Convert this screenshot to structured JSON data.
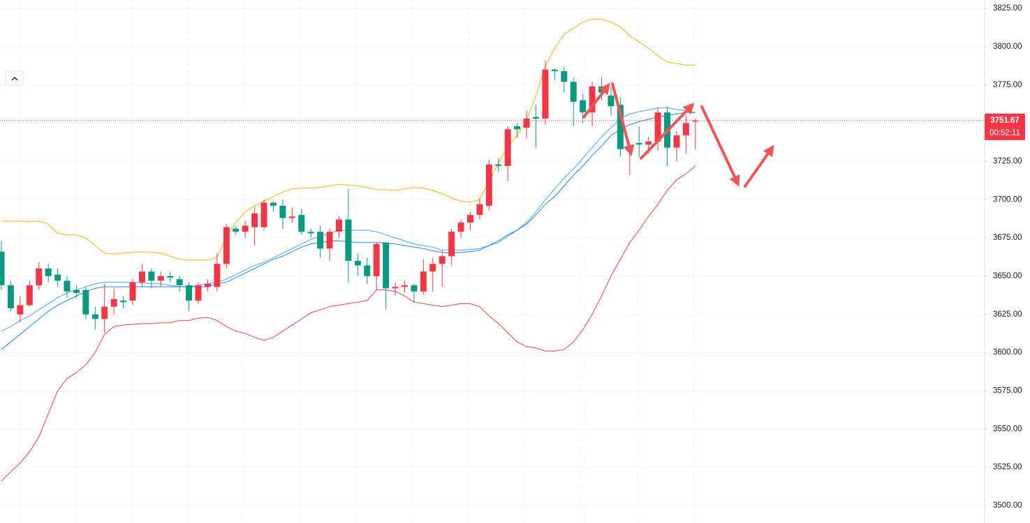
{
  "chart_data": {
    "type": "candlestick",
    "up_color": "#f23645",
    "down_color": "#089981",
    "open": [
      3666,
      3644,
      3625,
      3631,
      3644,
      3655,
      3651,
      3647,
      3641,
      3641,
      3625,
      3622,
      3630,
      3634,
      3634,
      3646,
      3653,
      3647,
      3650,
      3648,
      3644,
      3634,
      3643,
      3643,
      3658,
      3681,
      3679,
      3682,
      3682,
      3698,
      3696,
      3688,
      3690,
      3679,
      3679,
      3668,
      3679,
      3687,
      3660,
      3657,
      3650,
      3672,
      3642,
      3643,
      3644,
      3640,
      3653,
      3658,
      3663,
      3679,
      3685,
      3690,
      3696,
      3723,
      3722,
      3748,
      3747,
      3754,
      3753,
      3785,
      3784,
      3777,
      3765,
      3757,
      3774,
      3768,
      3762,
      3733,
      3737,
      3736,
      3738,
      3757,
      3734,
      3742,
      3751
    ],
    "high": [
      3673,
      3647,
      3637,
      3647,
      3659,
      3658,
      3655,
      3650,
      3644,
      3643,
      3630,
      3645,
      3642,
      3637,
      3648,
      3658,
      3655,
      3653,
      3653,
      3650,
      3646,
      3646,
      3648,
      3665,
      3684,
      3683,
      3686,
      3695,
      3700,
      3699,
      3700,
      3695,
      3694,
      3681,
      3683,
      3681,
      3689,
      3707,
      3665,
      3662,
      3672,
      3672,
      3646,
      3647,
      3645,
      3661,
      3662,
      3667,
      3681,
      3687,
      3692,
      3701,
      3726,
      3727,
      3748,
      3750,
      3758,
      3762,
      3791,
      3786,
      3787,
      3780,
      3769,
      3777,
      3780,
      3774,
      3767,
      3737,
      3748,
      3741,
      3760,
      3761,
      3745,
      3755,
      3753
    ],
    "low": [
      3641,
      3627,
      3620,
      3630,
      3641,
      3646,
      3643,
      3636,
      3636,
      3622,
      3615,
      3613,
      3625,
      3629,
      3631,
      3643,
      3642,
      3643,
      3646,
      3640,
      3627,
      3632,
      3640,
      3640,
      3655,
      3677,
      3675,
      3670,
      3680,
      3692,
      3681,
      3685,
      3677,
      3675,
      3662,
      3660,
      3675,
      3646,
      3650,
      3645,
      3641,
      3628,
      3637,
      3639,
      3633,
      3638,
      3640,
      3643,
      3657,
      3675,
      3680,
      3687,
      3693,
      3718,
      3712,
      3740,
      3740,
      3734,
      3749,
      3778,
      3770,
      3748,
      3750,
      3748,
      3765,
      3755,
      3728,
      3716,
      3728,
      3730,
      3732,
      3722,
      3725,
      3730,
      3733
    ],
    "close": [
      3644,
      3629,
      3631,
      3644,
      3655,
      3650,
      3647,
      3640,
      3639,
      3625,
      3622,
      3630,
      3635,
      3633,
      3646,
      3653,
      3647,
      3650,
      3649,
      3644,
      3634,
      3644,
      3645,
      3658,
      3682,
      3679,
      3683,
      3691,
      3698,
      3696,
      3688,
      3689,
      3679,
      3678,
      3668,
      3679,
      3687,
      3660,
      3657,
      3650,
      3671,
      3642,
      3643,
      3644,
      3640,
      3653,
      3658,
      3663,
      3679,
      3685,
      3690,
      3697,
      3723,
      3722,
      3746,
      3746,
      3753,
      3753,
      3785,
      3784,
      3777,
      3764,
      3757,
      3774,
      3770,
      3761,
      3733,
      3735,
      3736,
      3738,
      3757,
      3734,
      3742,
      3750,
      3751.67
    ],
    "lines": [
      {
        "color": "#f5b400",
        "values": [
          3686,
          3686,
          3686,
          3685.5,
          3686,
          3684,
          3678,
          3677,
          3677,
          3675,
          3670,
          3665,
          3664.5,
          3665,
          3665.5,
          3666,
          3665.5,
          3665,
          3663,
          3661,
          3660.5,
          3660.5,
          3660.5,
          3662,
          3676,
          3685,
          3692,
          3696,
          3699,
          3702,
          3705,
          3707,
          3707.5,
          3707.5,
          3708,
          3709,
          3710,
          3709.5,
          3709,
          3708,
          3706.5,
          3706.5,
          3706,
          3707,
          3708,
          3707.5,
          3706,
          3704,
          3701,
          3699,
          3698.5,
          3700,
          3712,
          3724,
          3735,
          3742,
          3752,
          3768,
          3787,
          3799,
          3808,
          3812,
          3816,
          3818,
          3818,
          3816,
          3813,
          3807,
          3803,
          3799,
          3794,
          3790,
          3789,
          3788,
          3788
        ]
      },
      {
        "color": "#f0403f",
        "values": [
          3516,
          3522,
          3528,
          3535,
          3545,
          3560,
          3575,
          3583,
          3587,
          3592,
          3600,
          3612,
          3617,
          3618,
          3618.5,
          3619,
          3619,
          3619.5,
          3619.5,
          3621,
          3621,
          3622.5,
          3623,
          3621,
          3617,
          3614,
          3612.5,
          3610,
          3608,
          3610,
          3614,
          3618,
          3622,
          3626,
          3628,
          3630,
          3631,
          3632,
          3633,
          3634,
          3641,
          3641,
          3640,
          3637,
          3633,
          3632,
          3631,
          3630,
          3631,
          3632,
          3632,
          3630,
          3624,
          3619,
          3613,
          3607,
          3604,
          3603,
          3601,
          3601,
          3602,
          3607,
          3615,
          3625,
          3637,
          3650,
          3661,
          3672,
          3680,
          3689,
          3697,
          3706,
          3713,
          3717,
          3722
        ]
      },
      {
        "color": "#42a5f5",
        "values": [
          3614,
          3617,
          3621,
          3624,
          3628,
          3632,
          3636,
          3639,
          3641,
          3643,
          3645,
          3646,
          3646,
          3646,
          3646,
          3645.5,
          3645,
          3645,
          3644,
          3643,
          3643,
          3644,
          3645,
          3646,
          3648,
          3651,
          3654,
          3657,
          3659,
          3662,
          3665,
          3668,
          3671,
          3674,
          3676,
          3678,
          3680,
          3680,
          3680,
          3680,
          3679,
          3677,
          3675,
          3673,
          3671,
          3670,
          3669,
          3667,
          3667,
          3667,
          3667.5,
          3668,
          3670,
          3672,
          3676,
          3680,
          3685,
          3692,
          3700,
          3707,
          3714,
          3720,
          3727,
          3734,
          3741,
          3747,
          3753,
          3756,
          3757.5,
          3758.5,
          3760,
          3760,
          3759,
          3758,
          3757
        ]
      },
      {
        "color": "#1e88e5",
        "values": [
          3602,
          3607,
          3612,
          3617,
          3622,
          3627,
          3631,
          3634,
          3637,
          3640,
          3642,
          3643,
          3643,
          3643,
          3643,
          3643,
          3643,
          3643,
          3643,
          3643,
          3643,
          3643,
          3643,
          3645,
          3646,
          3649,
          3652,
          3655,
          3658,
          3661,
          3663,
          3666,
          3669,
          3671,
          3672,
          3673,
          3673,
          3672.5,
          3672,
          3672,
          3672,
          3671.5,
          3671,
          3670,
          3669,
          3668,
          3666.5,
          3665.5,
          3665,
          3665.5,
          3666,
          3667,
          3670,
          3673,
          3677,
          3680,
          3684,
          3690,
          3697,
          3702,
          3709,
          3716,
          3722,
          3729,
          3735,
          3742,
          3746,
          3749,
          3751,
          3752.5,
          3754,
          3755,
          3756,
          3757,
          3757
        ]
      }
    ],
    "last_price": 3751.67,
    "countdown": "00:52:11",
    "ylim": [
      3488.6,
      3830.5
    ],
    "yticks": [
      {
        "value": 3500,
        "label": "3500.00"
      },
      {
        "value": 3525,
        "label": "3525.00"
      },
      {
        "value": 3550,
        "label": "3550.00"
      },
      {
        "value": 3575,
        "label": "3575.00"
      },
      {
        "value": 3600,
        "label": "3600.00"
      },
      {
        "value": 3625,
        "label": "3625.00"
      },
      {
        "value": 3650,
        "label": "3650.00"
      },
      {
        "value": 3675,
        "label": "3675.00"
      },
      {
        "value": 3700,
        "label": "3700.00"
      },
      {
        "value": 3725,
        "label": "3725.00"
      },
      {
        "value": 3750,
        "label": "3750.00"
      },
      {
        "value": 3775,
        "label": "3775.00"
      },
      {
        "value": 3800,
        "label": "3800.00"
      },
      {
        "value": 3825,
        "label": "3825.00"
      }
    ],
    "grid": true
  }
}
